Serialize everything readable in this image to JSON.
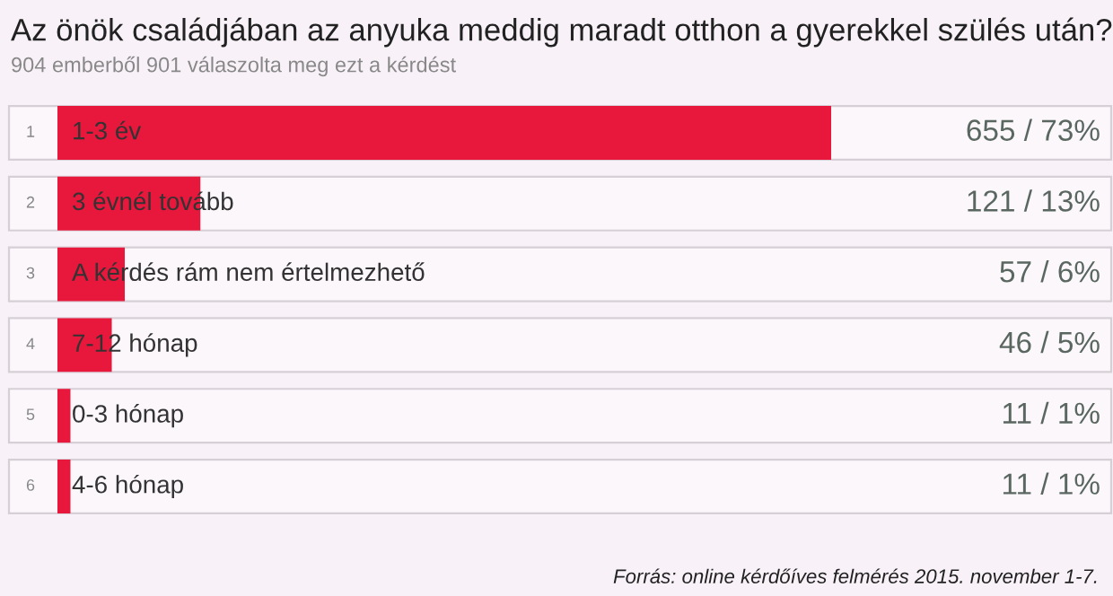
{
  "chart_data": {
    "type": "bar",
    "orientation": "horizontal",
    "title": "Az önök családjában az anyuka meddig maradt otthon a gyerekkel szülés után?",
    "subtitle": "904 emberből 901 válaszolta meg ezt a kérdést",
    "categories": [
      "1-3 év",
      "3 évnél tovább",
      "A kérdés rám nem értelmezhető",
      "7-12 hónap",
      "0-3 hónap",
      "4-6 hónap"
    ],
    "values": [
      655,
      121,
      57,
      46,
      11,
      11
    ],
    "value_labels": [
      "655 / 73%",
      "121 / 13%",
      "57 / 6%",
      "46 / 5%",
      "11 / 1%",
      "11 / 1%"
    ],
    "color": "#e8173c",
    "annotations": [
      "1",
      "2",
      "3",
      "4",
      "5",
      "6",
      "Forrás: online kérdőíves felmérés 2015. november 1-7."
    ]
  }
}
